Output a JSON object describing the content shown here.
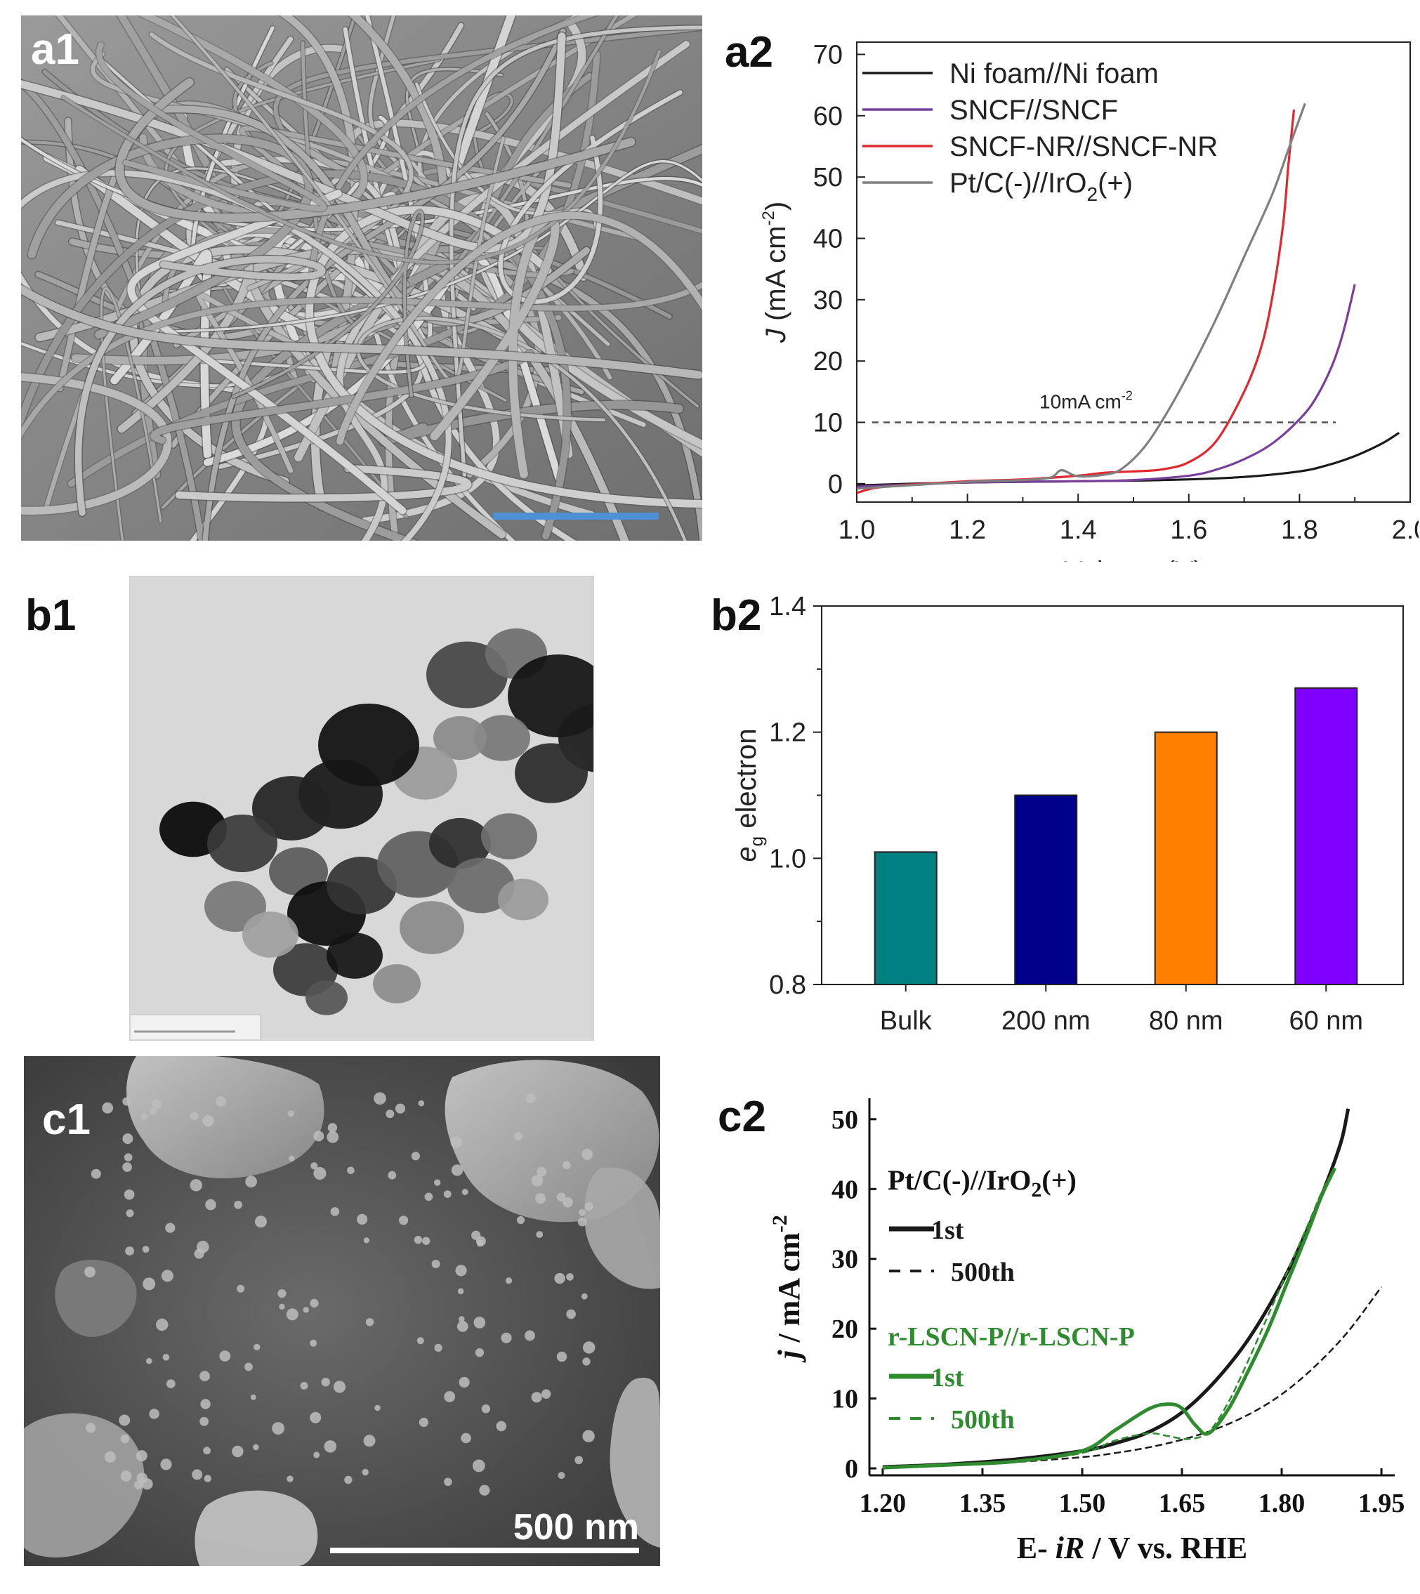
{
  "panels": {
    "a1": {
      "label": "a1"
    },
    "a2": {
      "label": "a2"
    },
    "b1": {
      "label": "b1"
    },
    "b2": {
      "label": "b2"
    },
    "c1": {
      "label": "c1",
      "scale_bar_text": "500 nm"
    },
    "c2": {
      "label": "c2"
    }
  },
  "colors": {
    "black": "#1a1a1a",
    "purple": "#7a3f9b",
    "red": "#e0282e",
    "gray": "#7f7f7f",
    "teal": "#008080",
    "navy": "#00008b",
    "orange": "#ff8000",
    "violet": "#8000ff",
    "green": "#2e8b2e",
    "scale_blue": "#4f8fd8"
  },
  "chart_data": [
    {
      "id": "a2",
      "type": "line",
      "xlabel": "Voltage (V)",
      "ylabel_prefix": "J",
      "ylabel_rest": " (mA cm",
      "ylabel_sup": "-2",
      "ylabel_close": ")",
      "xlim": [
        1.0,
        2.0
      ],
      "ylim": [
        -3,
        72
      ],
      "xticks": [
        "1.0",
        "1.2",
        "1.4",
        "1.6",
        "1.8",
        "2.0"
      ],
      "yticks": [
        "0",
        "10",
        "20",
        "30",
        "40",
        "50",
        "60",
        "70"
      ],
      "reference_line": {
        "y": 10,
        "label": "10mA cm",
        "label_sup": "-2"
      },
      "legend": [
        {
          "text": "Ni foam//Ni foam",
          "color": "#1a1a1a"
        },
        {
          "text": "SNCF//SNCF",
          "color": "#7a3f9b"
        },
        {
          "text": "SNCF-NR//SNCF-NR",
          "color": "#e0282e"
        },
        {
          "text_main": "Pt/C(-)//IrO",
          "text_sub": "2",
          "text_tail": "(+)",
          "color": "#7f7f7f"
        }
      ],
      "series": [
        {
          "name": "Ni foam//Ni foam",
          "color": "#1a1a1a",
          "x": [
            1.0,
            1.1,
            1.2,
            1.3,
            1.4,
            1.5,
            1.6,
            1.7,
            1.8,
            1.85,
            1.9,
            1.95,
            1.98
          ],
          "y": [
            -0.3,
            0.0,
            0.2,
            0.3,
            0.4,
            0.5,
            0.7,
            1.1,
            2.0,
            3.0,
            4.5,
            6.6,
            8.3
          ]
        },
        {
          "name": "SNCF//SNCF",
          "color": "#7a3f9b",
          "x": [
            1.0,
            1.2,
            1.4,
            1.5,
            1.6,
            1.65,
            1.7,
            1.75,
            1.8,
            1.83,
            1.86,
            1.88,
            1.9
          ],
          "y": [
            -0.5,
            0.2,
            0.4,
            0.6,
            1.3,
            2.3,
            4.0,
            6.5,
            10.5,
            14.0,
            19.5,
            25.0,
            32.5
          ]
        },
        {
          "name": "SNCF-NR//SNCF-NR",
          "color": "#e0282e",
          "x": [
            1.0,
            1.05,
            1.2,
            1.3,
            1.4,
            1.45,
            1.5,
            1.55,
            1.6,
            1.65,
            1.7,
            1.73,
            1.75,
            1.77,
            1.78,
            1.79
          ],
          "y": [
            -1.5,
            -0.5,
            0.4,
            0.7,
            1.3,
            1.8,
            2.0,
            2.3,
            3.5,
            7.0,
            15.0,
            22.0,
            30.0,
            42.0,
            52.0,
            61.0
          ]
        },
        {
          "name": "Pt/C(-)//IrO2(+)",
          "color": "#7f7f7f",
          "x": [
            1.0,
            1.2,
            1.3,
            1.35,
            1.37,
            1.4,
            1.45,
            1.48,
            1.52,
            1.56,
            1.6,
            1.65,
            1.7,
            1.75,
            1.78,
            1.81
          ],
          "y": [
            -0.8,
            0.3,
            0.6,
            1.0,
            2.2,
            1.2,
            1.5,
            2.5,
            6.0,
            11.5,
            18.0,
            27.0,
            37.0,
            47.0,
            54.5,
            62.0
          ]
        }
      ]
    },
    {
      "id": "b2",
      "type": "bar",
      "ylabel_italic": "e",
      "ylabel_sub": "g",
      "ylabel_rest": " electron",
      "categories": [
        "Bulk",
        "200 nm",
        "80 nm",
        "60 nm"
      ],
      "values": [
        1.01,
        1.1,
        1.2,
        1.27
      ],
      "colors": [
        "#008080",
        "#00008b",
        "#ff8000",
        "#8000ff"
      ],
      "ylim": [
        0.8,
        1.4
      ],
      "yticks": [
        "0.8",
        "1.0",
        "1.2",
        "1.4"
      ]
    },
    {
      "id": "c2",
      "type": "line",
      "xlabel_pre": "E- ",
      "xlabel_italic": "iR",
      "xlabel_post": " / V vs. RHE",
      "ylabel_italic": "j",
      "ylabel_rest": " / mA cm",
      "ylabel_sup": "-2",
      "xlim": [
        1.18,
        1.97
      ],
      "ylim": [
        -1,
        53
      ],
      "xticks": [
        "1.20",
        "1.35",
        "1.50",
        "1.65",
        "1.80",
        "1.95"
      ],
      "yticks": [
        "0",
        "10",
        "20",
        "30",
        "40",
        "50"
      ],
      "legend": {
        "group1_title_main": "Pt/C(-)//IrO",
        "group1_title_sub": "2",
        "group1_title_tail": "(+)",
        "group1_items": [
          "1st",
          "500th"
        ],
        "group2_title": "r-LSCN-P//r-LSCN-P",
        "group2_items": [
          "1st",
          "500th"
        ]
      },
      "series": [
        {
          "name": "1st",
          "group": "Pt/C(-)//IrO2(+)",
          "color": "#1a1a1a",
          "dash": false,
          "x": [
            1.2,
            1.3,
            1.4,
            1.5,
            1.55,
            1.6,
            1.65,
            1.7,
            1.75,
            1.8,
            1.84,
            1.87,
            1.89,
            1.9
          ],
          "y": [
            0.2,
            0.6,
            1.3,
            2.5,
            3.6,
            5.2,
            8.0,
            12.5,
            18.5,
            26.5,
            34.5,
            41.5,
            47.0,
            51.5
          ]
        },
        {
          "name": "500th",
          "group": "Pt/C(-)//IrO2(+)",
          "color": "#1a1a1a",
          "dash": true,
          "x": [
            1.2,
            1.3,
            1.4,
            1.5,
            1.55,
            1.6,
            1.65,
            1.7,
            1.75,
            1.8,
            1.85,
            1.9,
            1.95
          ],
          "y": [
            0.1,
            0.4,
            0.9,
            1.6,
            2.2,
            3.0,
            4.1,
            5.6,
            7.7,
            10.6,
            14.6,
            19.6,
            26.0
          ]
        },
        {
          "name": "1st",
          "group": "r-LSCN-P//r-LSCN-P",
          "color": "#2e8b2e",
          "dash": false,
          "x": [
            1.2,
            1.3,
            1.4,
            1.5,
            1.55,
            1.6,
            1.63,
            1.65,
            1.67,
            1.69,
            1.72,
            1.75,
            1.78,
            1.81,
            1.84,
            1.86,
            1.88
          ],
          "y": [
            0.1,
            0.5,
            1.0,
            2.5,
            5.5,
            8.5,
            9.2,
            8.6,
            6.2,
            5.0,
            8.5,
            14.0,
            20.0,
            27.0,
            34.0,
            39.0,
            43.0
          ]
        },
        {
          "name": "500th",
          "group": "r-LSCN-P//r-LSCN-P",
          "color": "#2e8b2e",
          "dash": true,
          "x": [
            1.2,
            1.3,
            1.4,
            1.5,
            1.55,
            1.6,
            1.63,
            1.66,
            1.69,
            1.72,
            1.75,
            1.78,
            1.81,
            1.84,
            1.86,
            1.88
          ],
          "y": [
            0.1,
            0.4,
            0.9,
            2.2,
            4.0,
            5.0,
            4.6,
            4.2,
            5.2,
            9.5,
            15.5,
            22.0,
            28.5,
            35.0,
            39.5,
            43.0
          ]
        }
      ]
    }
  ]
}
